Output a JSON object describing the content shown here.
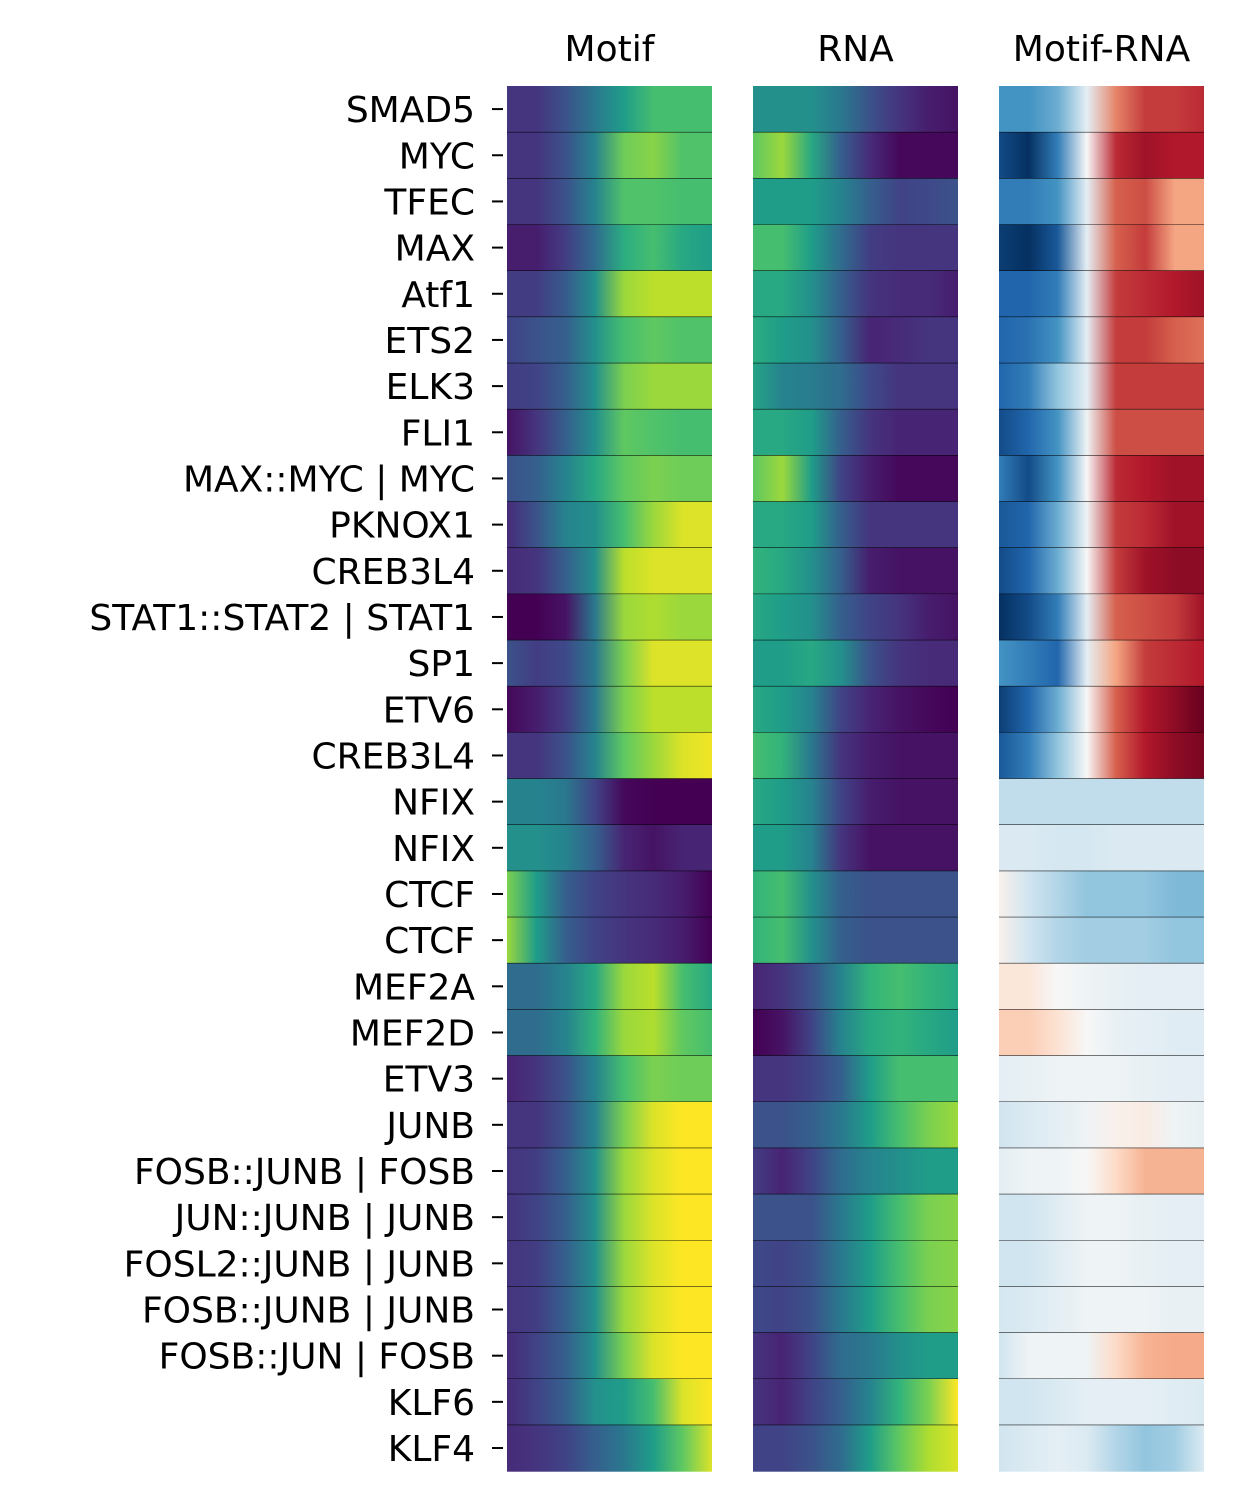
{
  "chart_data": {
    "type": "heatmap",
    "panels": [
      {
        "title": "Motif",
        "colormap": "viridis"
      },
      {
        "title": "RNA",
        "colormap": "viridis"
      },
      {
        "title": "Motif-RNA",
        "colormap": "RdBu_r"
      }
    ],
    "rows": [
      "SMAD5",
      "MYC",
      "TFEC",
      "MAX",
      "Atf1",
      "ETS2",
      "ELK3",
      "FLI1",
      "MAX::MYC | MYC",
      "PKNOX1",
      "CREB3L4",
      "STAT1::STAT2 | STAT1",
      "SP1",
      "ETV6",
      "CREB3L4",
      "NFIX",
      "NFIX",
      "CTCF",
      "CTCF",
      "MEF2A",
      "MEF2D",
      "ETV3",
      "JUNB",
      "FOSB::JUNB | FOSB",
      "JUN::JUNB | JUNB",
      "FOSL2::JUNB | JUNB",
      "FOSB::JUNB | JUNB",
      "FOSB::JUN | FOSB",
      "KLF6",
      "KLF4"
    ],
    "motif": [
      [
        0.15,
        0.15,
        0.25,
        0.4,
        0.55,
        0.7,
        0.7,
        0.7
      ],
      [
        0.15,
        0.15,
        0.25,
        0.45,
        0.78,
        0.82,
        0.72,
        0.72
      ],
      [
        0.15,
        0.15,
        0.25,
        0.45,
        0.72,
        0.72,
        0.7,
        0.7
      ],
      [
        0.08,
        0.08,
        0.18,
        0.35,
        0.62,
        0.7,
        0.6,
        0.55
      ],
      [
        0.18,
        0.18,
        0.28,
        0.5,
        0.85,
        0.9,
        0.9,
        0.9
      ],
      [
        0.2,
        0.25,
        0.3,
        0.5,
        0.7,
        0.75,
        0.72,
        0.72
      ],
      [
        0.18,
        0.2,
        0.3,
        0.5,
        0.8,
        0.85,
        0.85,
        0.85
      ],
      [
        0.05,
        0.15,
        0.3,
        0.5,
        0.75,
        0.72,
        0.7,
        0.7
      ],
      [
        0.25,
        0.3,
        0.45,
        0.6,
        0.75,
        0.8,
        0.78,
        0.78
      ],
      [
        0.12,
        0.25,
        0.45,
        0.5,
        0.7,
        0.85,
        0.95,
        0.95
      ],
      [
        0.12,
        0.15,
        0.3,
        0.5,
        0.9,
        0.95,
        0.95,
        0.95
      ],
      [
        0.0,
        0.0,
        0.05,
        0.4,
        0.85,
        0.88,
        0.85,
        0.85
      ],
      [
        0.25,
        0.18,
        0.22,
        0.4,
        0.8,
        0.95,
        0.95,
        0.95
      ],
      [
        0.02,
        0.08,
        0.18,
        0.4,
        0.8,
        0.9,
        0.9,
        0.9
      ],
      [
        0.15,
        0.15,
        0.25,
        0.45,
        0.75,
        0.85,
        0.95,
        0.98
      ],
      [
        0.45,
        0.45,
        0.4,
        0.2,
        0.02,
        0.0,
        0.0,
        0.0
      ],
      [
        0.5,
        0.5,
        0.45,
        0.3,
        0.1,
        0.05,
        0.1,
        0.1
      ],
      [
        0.8,
        0.55,
        0.3,
        0.2,
        0.15,
        0.12,
        0.08,
        0.0
      ],
      [
        0.85,
        0.55,
        0.3,
        0.2,
        0.15,
        0.12,
        0.08,
        0.0
      ],
      [
        0.35,
        0.35,
        0.45,
        0.6,
        0.85,
        0.9,
        0.7,
        0.6
      ],
      [
        0.35,
        0.35,
        0.45,
        0.65,
        0.85,
        0.88,
        0.75,
        0.7
      ],
      [
        0.1,
        0.15,
        0.25,
        0.45,
        0.7,
        0.8,
        0.78,
        0.78
      ],
      [
        0.15,
        0.15,
        0.25,
        0.45,
        0.8,
        0.95,
        1.0,
        1.0
      ],
      [
        0.15,
        0.18,
        0.3,
        0.5,
        0.85,
        0.95,
        1.0,
        1.0
      ],
      [
        0.15,
        0.2,
        0.3,
        0.5,
        0.85,
        0.95,
        1.0,
        1.0
      ],
      [
        0.15,
        0.18,
        0.3,
        0.5,
        0.85,
        0.95,
        1.0,
        1.0
      ],
      [
        0.15,
        0.18,
        0.3,
        0.5,
        0.85,
        0.95,
        1.0,
        1.0
      ],
      [
        0.12,
        0.2,
        0.3,
        0.5,
        0.8,
        0.95,
        1.0,
        1.0
      ],
      [
        0.12,
        0.2,
        0.3,
        0.5,
        0.55,
        0.7,
        0.95,
        1.0
      ],
      [
        0.12,
        0.15,
        0.2,
        0.3,
        0.4,
        0.55,
        0.75,
        0.95
      ]
    ],
    "rna": [
      [
        0.5,
        0.5,
        0.5,
        0.4,
        0.25,
        0.15,
        0.08,
        0.05
      ],
      [
        0.75,
        0.85,
        0.6,
        0.3,
        0.12,
        0.02,
        0.02,
        0.02
      ],
      [
        0.55,
        0.55,
        0.55,
        0.45,
        0.3,
        0.2,
        0.22,
        0.25
      ],
      [
        0.7,
        0.7,
        0.55,
        0.35,
        0.18,
        0.15,
        0.15,
        0.15
      ],
      [
        0.6,
        0.6,
        0.5,
        0.3,
        0.15,
        0.12,
        0.12,
        0.08
      ],
      [
        0.62,
        0.55,
        0.5,
        0.3,
        0.1,
        0.12,
        0.15,
        0.15
      ],
      [
        0.58,
        0.45,
        0.42,
        0.35,
        0.22,
        0.15,
        0.15,
        0.15
      ],
      [
        0.6,
        0.6,
        0.55,
        0.3,
        0.15,
        0.1,
        0.1,
        0.1
      ],
      [
        0.75,
        0.85,
        0.55,
        0.2,
        0.08,
        0.02,
        0.02,
        0.02
      ],
      [
        0.6,
        0.6,
        0.55,
        0.3,
        0.15,
        0.15,
        0.15,
        0.15
      ],
      [
        0.65,
        0.6,
        0.5,
        0.3,
        0.08,
        0.05,
        0.05,
        0.05
      ],
      [
        0.6,
        0.55,
        0.5,
        0.3,
        0.2,
        0.15,
        0.08,
        0.05
      ],
      [
        0.55,
        0.55,
        0.6,
        0.5,
        0.25,
        0.15,
        0.12,
        0.12
      ],
      [
        0.6,
        0.55,
        0.45,
        0.2,
        0.1,
        0.05,
        0.02,
        0.0
      ],
      [
        0.7,
        0.65,
        0.4,
        0.15,
        0.08,
        0.05,
        0.05,
        0.05
      ],
      [
        0.6,
        0.55,
        0.45,
        0.2,
        0.08,
        0.05,
        0.05,
        0.05
      ],
      [
        0.55,
        0.55,
        0.45,
        0.15,
        0.05,
        0.05,
        0.05,
        0.05
      ],
      [
        0.65,
        0.7,
        0.5,
        0.3,
        0.25,
        0.25,
        0.25,
        0.25
      ],
      [
        0.65,
        0.7,
        0.5,
        0.3,
        0.25,
        0.25,
        0.25,
        0.25
      ],
      [
        0.1,
        0.15,
        0.25,
        0.45,
        0.65,
        0.7,
        0.65,
        0.6
      ],
      [
        0.0,
        0.05,
        0.2,
        0.45,
        0.6,
        0.65,
        0.6,
        0.55
      ],
      [
        0.15,
        0.15,
        0.2,
        0.3,
        0.55,
        0.7,
        0.7,
        0.7
      ],
      [
        0.25,
        0.25,
        0.3,
        0.4,
        0.55,
        0.7,
        0.8,
        0.85
      ],
      [
        0.18,
        0.1,
        0.2,
        0.35,
        0.45,
        0.5,
        0.55,
        0.55
      ],
      [
        0.25,
        0.25,
        0.25,
        0.4,
        0.55,
        0.7,
        0.8,
        0.82
      ],
      [
        0.22,
        0.2,
        0.25,
        0.4,
        0.55,
        0.7,
        0.8,
        0.82
      ],
      [
        0.22,
        0.2,
        0.25,
        0.4,
        0.55,
        0.7,
        0.8,
        0.82
      ],
      [
        0.15,
        0.1,
        0.2,
        0.35,
        0.4,
        0.5,
        0.55,
        0.55
      ],
      [
        0.15,
        0.1,
        0.2,
        0.3,
        0.45,
        0.65,
        0.8,
        1.0
      ],
      [
        0.2,
        0.2,
        0.25,
        0.35,
        0.55,
        0.75,
        0.88,
        0.95
      ]
    ],
    "diff": [
      [
        -0.6,
        -0.6,
        -0.5,
        -0.1,
        0.5,
        0.7,
        0.7,
        0.75
      ],
      [
        -0.9,
        -1.0,
        -0.7,
        0.0,
        0.75,
        0.85,
        0.8,
        0.8
      ],
      [
        -0.7,
        -0.7,
        -0.6,
        -0.1,
        0.6,
        0.65,
        0.4,
        0.4
      ],
      [
        -0.95,
        -1.0,
        -0.85,
        -0.1,
        0.6,
        0.7,
        0.4,
        0.4
      ],
      [
        -0.8,
        -0.8,
        -0.7,
        -0.1,
        0.7,
        0.75,
        0.8,
        0.85
      ],
      [
        -0.8,
        -0.75,
        -0.6,
        -0.1,
        0.7,
        0.7,
        0.6,
        0.55
      ],
      [
        -0.8,
        -0.7,
        -0.4,
        -0.1,
        0.7,
        0.7,
        0.7,
        0.7
      ],
      [
        -0.9,
        -0.8,
        -0.6,
        -0.05,
        0.65,
        0.65,
        0.65,
        0.65
      ],
      [
        -0.7,
        -0.9,
        -0.6,
        0.0,
        0.75,
        0.8,
        0.85,
        0.85
      ],
      [
        -0.85,
        -0.8,
        -0.5,
        -0.05,
        0.7,
        0.75,
        0.85,
        0.85
      ],
      [
        -0.9,
        -0.8,
        -0.5,
        0.0,
        0.7,
        0.85,
        0.9,
        0.9
      ],
      [
        -1.0,
        -0.9,
        -0.7,
        -0.1,
        0.6,
        0.65,
        0.7,
        0.85
      ],
      [
        -0.6,
        -0.7,
        -0.8,
        -0.1,
        0.4,
        0.7,
        0.75,
        0.8
      ],
      [
        -0.95,
        -0.8,
        -0.5,
        0.0,
        0.6,
        0.8,
        0.9,
        1.0
      ],
      [
        -0.85,
        -0.7,
        -0.4,
        0.0,
        0.6,
        0.8,
        0.9,
        0.95
      ],
      [
        -0.25,
        -0.25,
        -0.25,
        -0.25,
        -0.25,
        -0.25,
        -0.25,
        -0.25
      ],
      [
        -0.15,
        -0.15,
        -0.18,
        -0.18,
        -0.15,
        -0.15,
        -0.15,
        -0.15
      ],
      [
        0.05,
        -0.2,
        -0.3,
        -0.4,
        -0.4,
        -0.4,
        -0.45,
        -0.45
      ],
      [
        0.05,
        -0.2,
        -0.3,
        -0.35,
        -0.35,
        -0.35,
        -0.4,
        -0.4
      ],
      [
        0.12,
        0.12,
        0.0,
        -0.05,
        -0.08,
        -0.1,
        -0.1,
        -0.1
      ],
      [
        0.25,
        0.25,
        0.15,
        0.0,
        -0.08,
        -0.1,
        -0.12,
        -0.12
      ],
      [
        -0.1,
        -0.08,
        -0.05,
        -0.05,
        -0.05,
        -0.08,
        -0.1,
        -0.1
      ],
      [
        -0.2,
        -0.15,
        -0.1,
        -0.05,
        0.05,
        0.08,
        -0.05,
        -0.08
      ],
      [
        -0.1,
        -0.05,
        -0.05,
        0.0,
        0.2,
        0.35,
        0.35,
        0.35
      ],
      [
        -0.2,
        -0.2,
        -0.12,
        -0.05,
        -0.05,
        -0.08,
        -0.1,
        -0.1
      ],
      [
        -0.2,
        -0.2,
        -0.12,
        -0.05,
        -0.05,
        -0.08,
        -0.1,
        -0.1
      ],
      [
        -0.18,
        -0.15,
        -0.1,
        -0.05,
        -0.05,
        -0.05,
        -0.08,
        -0.08
      ],
      [
        -0.2,
        -0.05,
        -0.05,
        -0.05,
        0.2,
        0.35,
        0.38,
        0.38
      ],
      [
        -0.2,
        -0.2,
        -0.15,
        -0.1,
        -0.1,
        -0.1,
        -0.12,
        -0.15
      ],
      [
        -0.2,
        -0.15,
        -0.1,
        -0.15,
        -0.3,
        -0.4,
        -0.35,
        -0.15
      ]
    ]
  }
}
